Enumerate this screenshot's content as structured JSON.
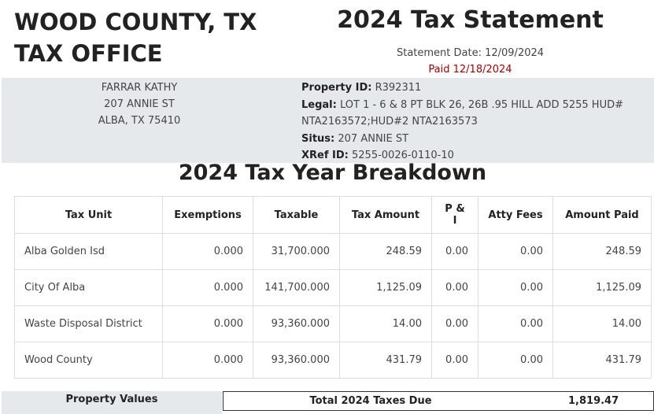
{
  "header": {
    "office": [
      "WOOD COUNTY, TX",
      "TAX OFFICE"
    ],
    "title": "2024 Tax Statement",
    "statement_date": "Statement Date: 12/09/2024",
    "paid": "Paid 12/18/2024"
  },
  "owner": {
    "lines": [
      "FARRAR KATHY",
      "207 ANNIE ST",
      "ALBA, TX 75410"
    ]
  },
  "property": {
    "fields": [
      {
        "label": "Property ID:",
        "value": "R392311"
      },
      {
        "label": "Legal:",
        "value": "LOT 1 - 6 & 8 PT BLK 26, 26B .95 HILL ADD 5255 HUD# NTA2163572;HUD#2 NTA2163573"
      },
      {
        "label": "Situs:",
        "value": "207 ANNIE ST"
      },
      {
        "label": "XRef ID:",
        "value": "5255-0026-0110-10"
      }
    ]
  },
  "breakdown": {
    "title": "2024 Tax Year Breakdown",
    "table": {
      "columns": [
        "Tax Unit",
        "Exemptions",
        "Taxable",
        "Tax Amount",
        "P & I",
        "Atty Fees",
        "Amount Paid"
      ],
      "rows": [
        [
          "Alba Golden Isd",
          "0.000",
          "31,700.000",
          "248.59",
          "0.00",
          "0.00",
          "248.59"
        ],
        [
          "City Of Alba",
          "0.000",
          "141,700.000",
          "1,125.09",
          "0.00",
          "0.00",
          "1,125.09"
        ],
        [
          "Waste Disposal District",
          "0.000",
          "93,360.000",
          "14.00",
          "0.00",
          "0.00",
          "14.00"
        ],
        [
          "Wood County",
          "0.000",
          "93,360.000",
          "431.79",
          "0.00",
          "0.00",
          "431.79"
        ]
      ]
    }
  },
  "summary": {
    "property_values": "Property Values",
    "total_label": "Total 2024 Taxes Due",
    "total": "1,819.47"
  }
}
